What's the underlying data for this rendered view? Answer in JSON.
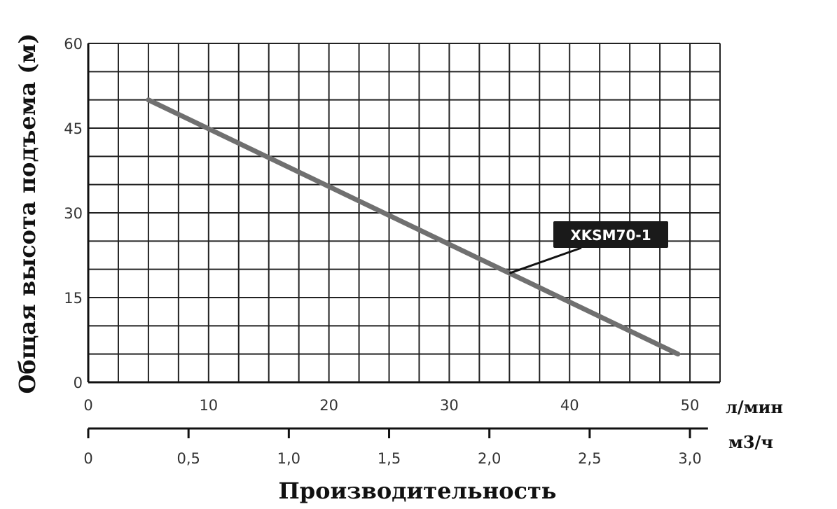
{
  "chart_data": {
    "type": "line",
    "title": "",
    "xlabel": "Производительность",
    "ylabel": "Общая высота подъема (м)",
    "x_unit": "л/мин",
    "x2_unit": "м3/ч",
    "xlim": [
      0,
      52.5
    ],
    "ylim": [
      0,
      60
    ],
    "x_ticks": [
      "0",
      "10",
      "20",
      "30",
      "40",
      "50"
    ],
    "x_tick_values": [
      0,
      10,
      20,
      30,
      40,
      50
    ],
    "x2_ticks": [
      "0",
      "0,5",
      "1,0",
      "1,5",
      "2,0",
      "2,5",
      "3,0"
    ],
    "x2_tick_values": [
      0,
      0.5,
      1.0,
      1.5,
      2.0,
      2.5,
      3.0
    ],
    "y_ticks": [
      "0",
      "15",
      "30",
      "45",
      "60"
    ],
    "y_tick_values": [
      0,
      15,
      30,
      45,
      60
    ],
    "grid": true,
    "series": [
      {
        "name": "XKSM70-1",
        "x": [
          5,
          49
        ],
        "y": [
          50,
          5
        ],
        "color": "#707070"
      }
    ],
    "annotation": {
      "text": "XKSM70-1",
      "point_x": 35,
      "point_y": 19.3,
      "background": "#1a1a1a"
    }
  }
}
